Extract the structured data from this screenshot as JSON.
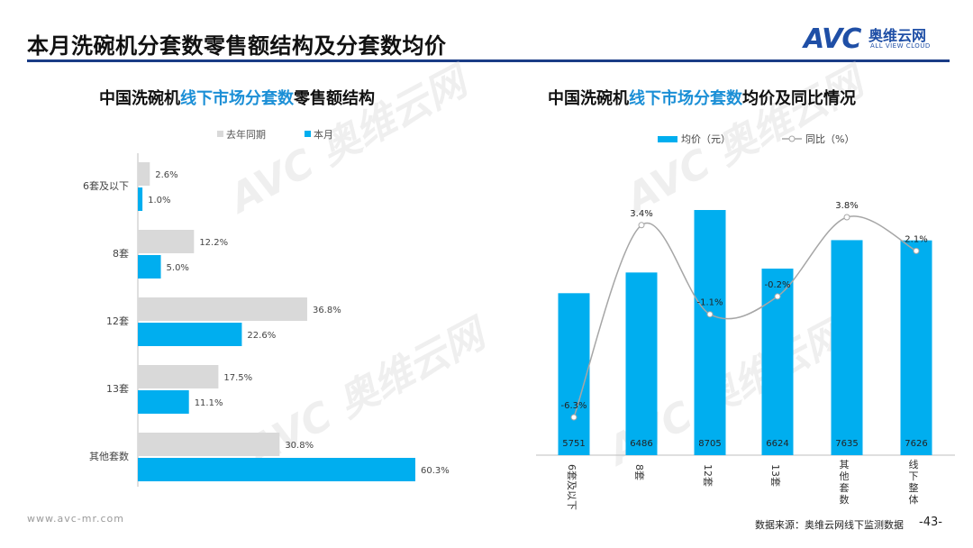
{
  "header": {
    "title": "本月洗碗机分套数零售额结构及分套数均价",
    "logo_word": "AVC",
    "logo_cn": "奥维云网",
    "logo_en": "ALL VIEW CLOUD"
  },
  "watermark": {
    "word": "AVC 奥维云网",
    "sub": "ALL VIEW CLOUD"
  },
  "colors": {
    "accent": "#1a3c86",
    "bar_current": "#00aeef",
    "bar_last": "#d9d9d9",
    "line": "#a6a6a6"
  },
  "left_chart": {
    "title_pre": "中国洗碗机",
    "title_hl": "线下市场分套数",
    "title_post": "零售额结构"
  },
  "right_chart": {
    "title_pre": "中国洗碗机",
    "title_hl": "线下市场分套数",
    "title_post": "均价及同比情况"
  },
  "chart_data": [
    {
      "type": "bar",
      "orientation": "horizontal",
      "title": "中国洗碗机线下市场分套数零售额结构",
      "categories": [
        "6套及以下",
        "8套",
        "12套",
        "13套",
        "其他套数"
      ],
      "series": [
        {
          "name": "去年同期",
          "values": [
            2.6,
            12.2,
            36.8,
            17.5,
            30.8
          ],
          "labels": [
            "2.6%",
            "12.2%",
            "36.8%",
            "17.5%",
            "30.8%"
          ]
        },
        {
          "name": "本月",
          "values": [
            1.0,
            5.0,
            22.6,
            11.1,
            60.3
          ],
          "labels": [
            "1.0%",
            "5.0%",
            "22.6%",
            "11.1%",
            "60.3%"
          ]
        }
      ],
      "xlim": [
        0,
        70
      ],
      "unit": "%",
      "legend": "top"
    },
    {
      "type": "bar+line",
      "title": "中国洗碗机线下市场分套数均价及同比情况",
      "categories": [
        "6套及以下",
        "8套",
        "12套",
        "13套",
        "其他套数",
        "线下整体"
      ],
      "bars": {
        "name": "均价（元）",
        "values": [
          5751,
          6486,
          8705,
          6624,
          7635,
          7626
        ],
        "labels": [
          "5751",
          "6486",
          "8705",
          "6624",
          "7635",
          "7626"
        ]
      },
      "line": {
        "name": "同比（%）",
        "values": [
          -6.3,
          3.4,
          -1.1,
          -0.2,
          3.8,
          2.1
        ],
        "labels": [
          "-6.3%",
          "3.4%",
          "-1.1%",
          "-0.2%",
          "3.8%",
          "2.1%"
        ]
      },
      "bar_ylim": [
        0,
        9500
      ],
      "line_ylim": [
        -7.5,
        5.5
      ],
      "legend": "top"
    }
  ],
  "footer": {
    "website": "www.avc-mr.com",
    "source": "数据来源：奥维云网线下监测数据",
    "page": "-43-"
  }
}
